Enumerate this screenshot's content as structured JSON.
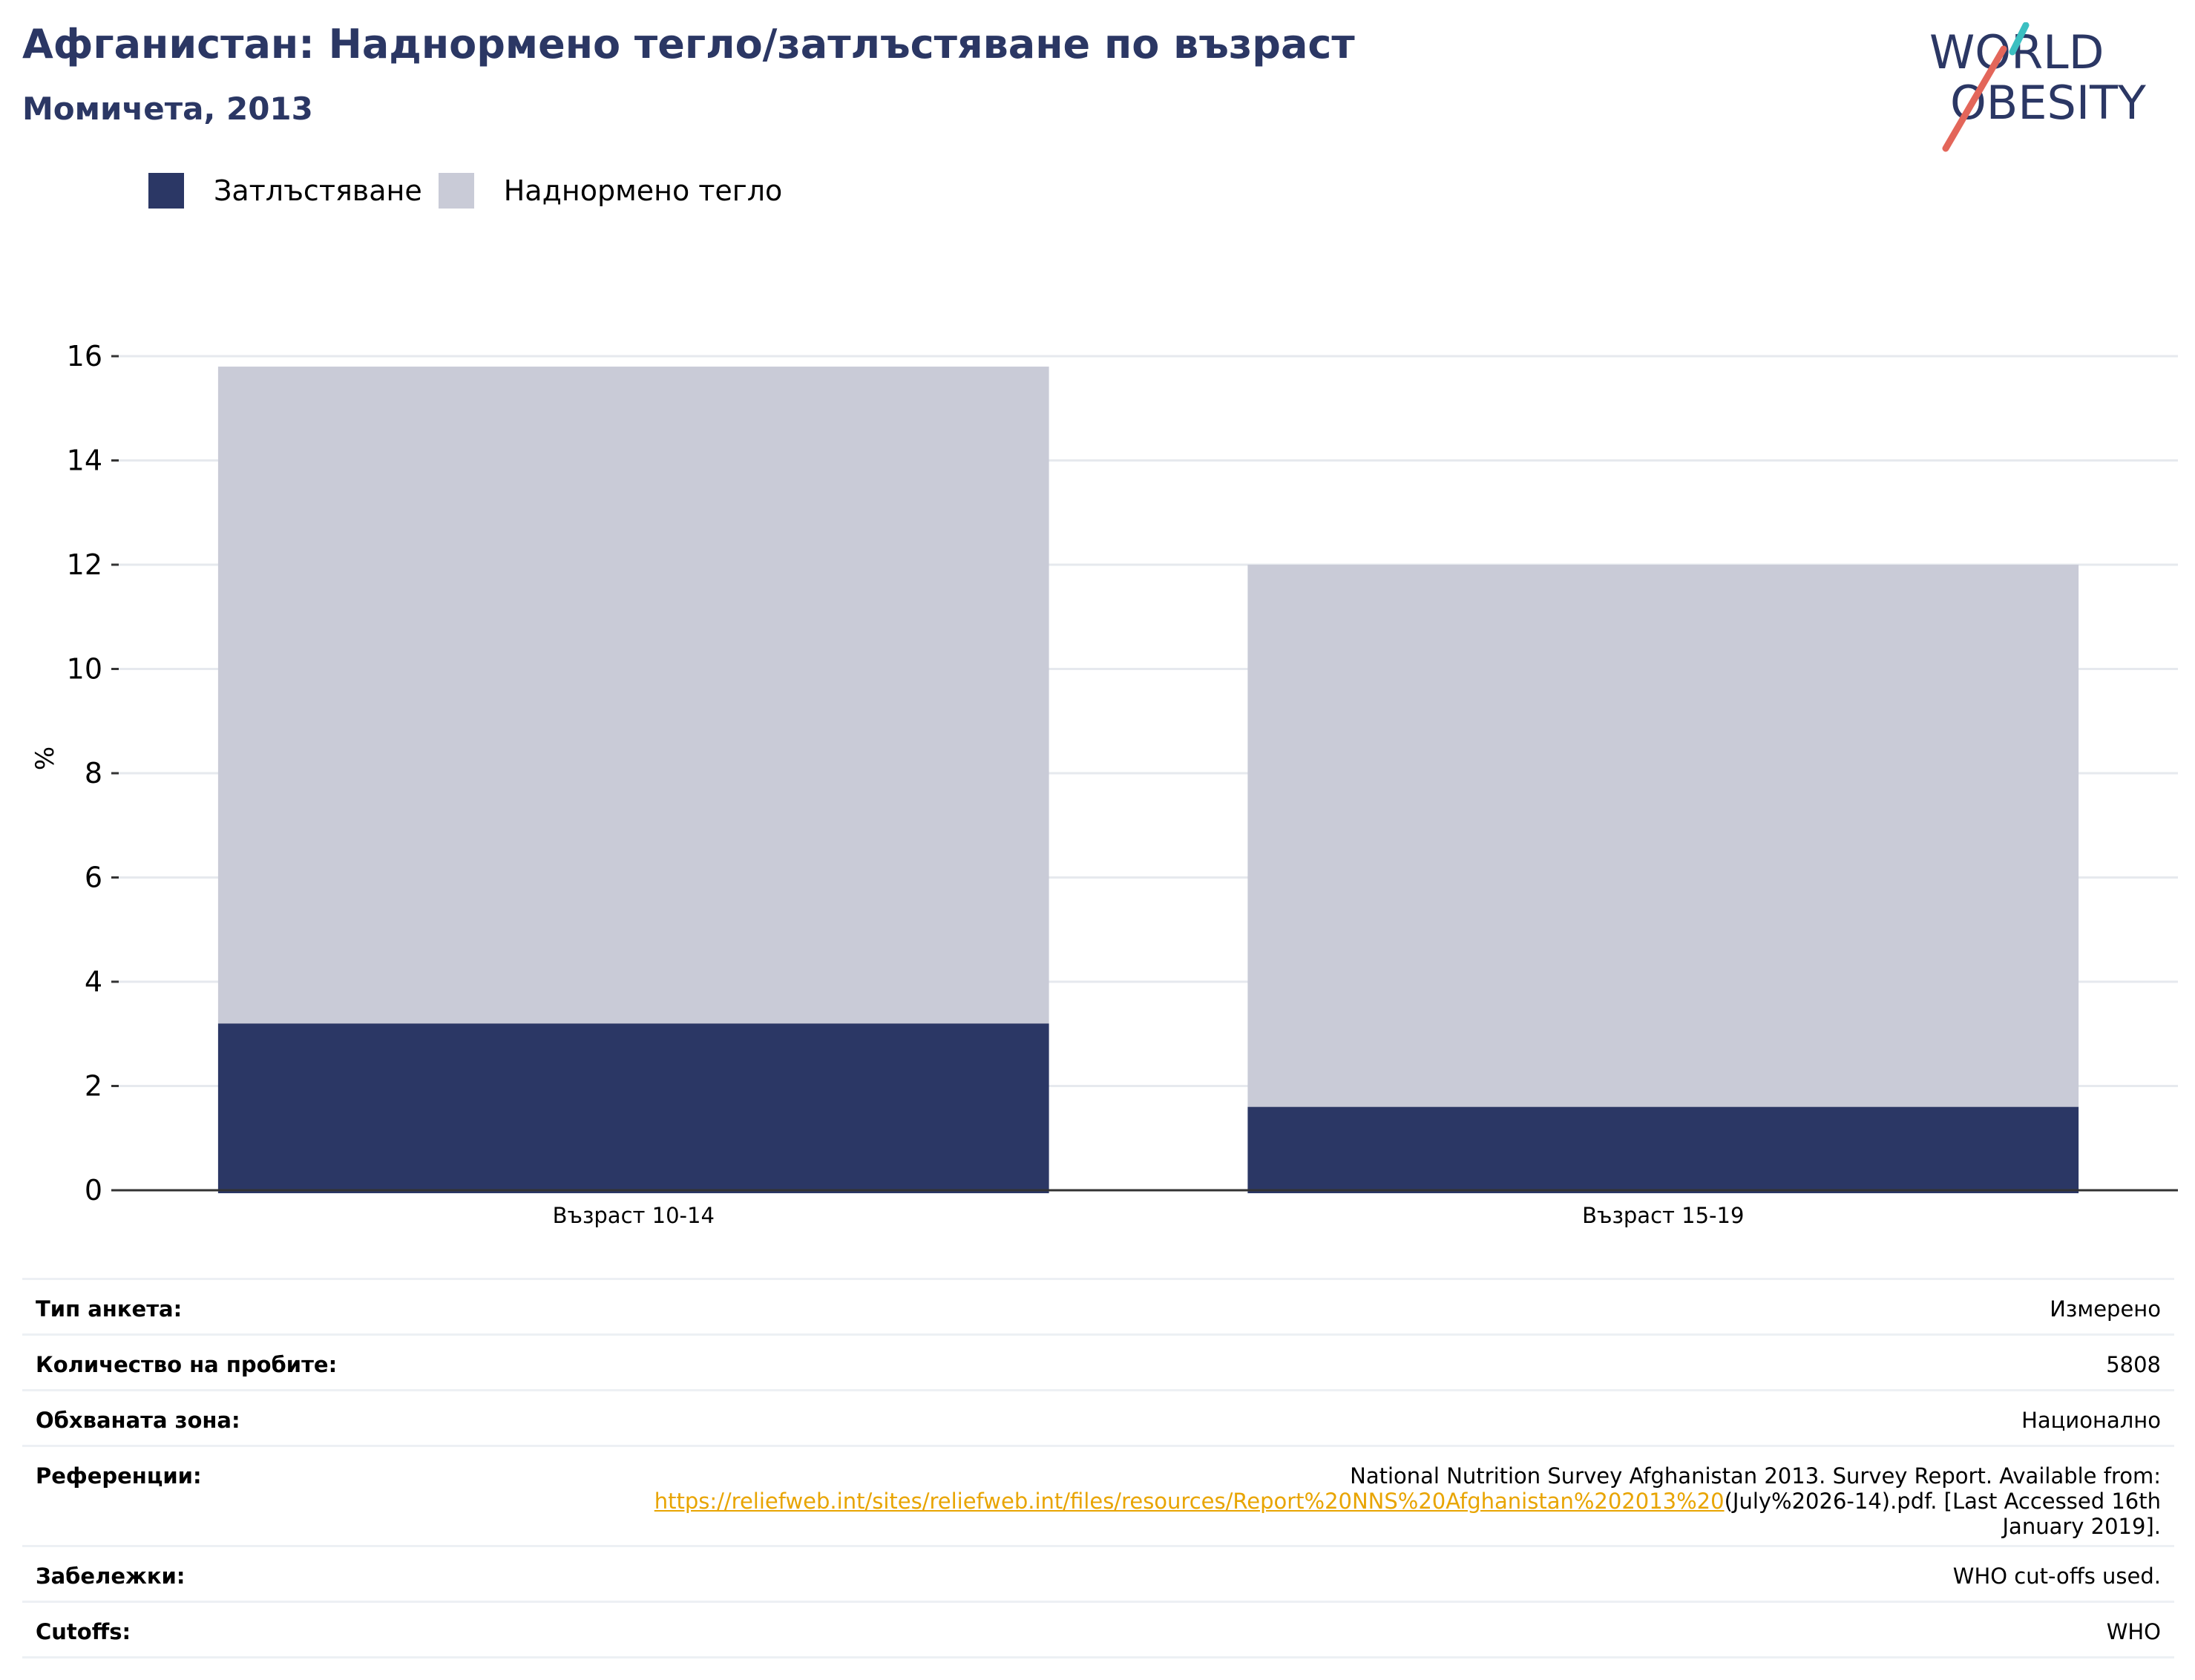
{
  "header": {
    "title": "Афганистан: Наднормено тегло/затлъстяване по възраст",
    "subtitle": "Момичета, 2013"
  },
  "logo": {
    "line1": "WORLD",
    "line2": "OBESITY"
  },
  "colors": {
    "obesity": "#2b3765",
    "overweight": "#c9cbd7",
    "title": "#2b3764",
    "grid": "#e6e9ee",
    "axis": "#333333",
    "link": "#e8a400",
    "logo_teal": "#3bbfc1",
    "logo_red": "#e3665a"
  },
  "legend": {
    "items": [
      {
        "label": "Затлъстяване",
        "color": "#2b3765"
      },
      {
        "label": "Наднормено тегло",
        "color": "#c9cbd7"
      }
    ]
  },
  "chart_data": {
    "type": "bar",
    "stacked": true,
    "categories": [
      "Възраст 10-14",
      "Възраст 15-19"
    ],
    "series": [
      {
        "name": "Затлъстяване",
        "values": [
          3.2,
          1.6
        ]
      },
      {
        "name": "Наднормено тегло",
        "values": [
          12.6,
          10.4
        ]
      }
    ],
    "totals": [
      15.8,
      12.0
    ],
    "ylabel": "%",
    "ylim": [
      0,
      16
    ],
    "yticks": [
      0,
      2,
      4,
      6,
      8,
      10,
      12,
      14,
      16
    ],
    "grid": true,
    "legend_position": "top-left"
  },
  "info": {
    "survey_type_label": "Тип анкета:",
    "survey_type_value": "Измерено",
    "sample_size_label": "Количество на пробите:",
    "sample_size_value": "5808",
    "area_label": "Обхваната зона:",
    "area_value": "Национално",
    "references_label": "Референции:",
    "references_text_1": "National Nutrition Survey Afghanistan 2013. Survey Report. Available from:",
    "references_link": "https://reliefweb.int/sites/reliefweb.int/files/resources/Report%20NNS%20Afghanistan%202013%20",
    "references_text_2": "(July%2026-14).pdf. [Last Accessed 16th",
    "references_text_3": "January 2019].",
    "notes_label": "Забележки:",
    "notes_value": "WHO cut-offs used.",
    "cutoffs_label": "Cutoffs:",
    "cutoffs_value": "WHO"
  }
}
